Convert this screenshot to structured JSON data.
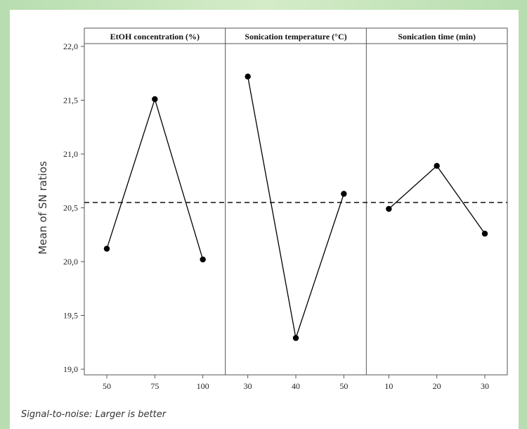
{
  "footnote": "Signal-to-noise: Larger is better",
  "chart_data": {
    "type": "line",
    "title": "",
    "ylabel": "Mean of SN ratios",
    "ylim": [
      19.0,
      22.0
    ],
    "y_ticks": [
      "19,0",
      "19,5",
      "20,0",
      "20,5",
      "21,0",
      "21,5",
      "22,0"
    ],
    "y_tick_values": [
      19.0,
      19.5,
      20.0,
      20.5,
      21.0,
      21.5,
      22.0
    ],
    "reference_line": 20.55,
    "reference_style": "dashed",
    "line_color": "#000000",
    "panels": [
      {
        "title": "EtOH concentration (%)",
        "categories": [
          "50",
          "75",
          "100"
        ],
        "values": [
          20.12,
          21.51,
          20.02
        ]
      },
      {
        "title": "Sonication temperature (°C)",
        "categories": [
          "30",
          "40",
          "50"
        ],
        "values": [
          21.72,
          19.29,
          20.63
        ]
      },
      {
        "title": "Sonication time (min)",
        "categories": [
          "10",
          "20",
          "30"
        ],
        "values": [
          20.49,
          20.89,
          20.26
        ]
      }
    ]
  }
}
